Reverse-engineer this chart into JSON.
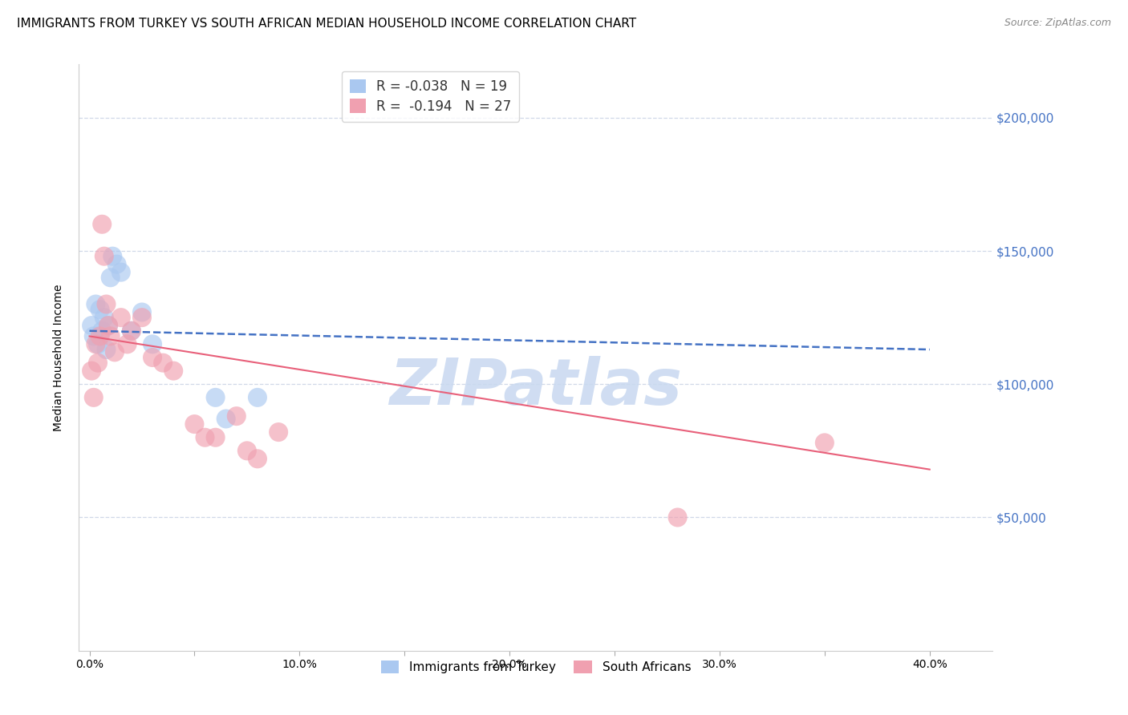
{
  "title": "IMMIGRANTS FROM TURKEY VS SOUTH AFRICAN MEDIAN HOUSEHOLD INCOME CORRELATION CHART",
  "source": "Source: ZipAtlas.com",
  "xlabel_bottom": [
    "0.0%",
    "",
    "10.0%",
    "",
    "20.0%",
    "",
    "30.0%",
    "",
    "40.0%"
  ],
  "xlabel_bottom_vals": [
    0.0,
    0.05,
    0.1,
    0.15,
    0.2,
    0.25,
    0.3,
    0.35,
    0.4
  ],
  "ylabel": "Median Household Income",
  "ytick_labels": [
    "$50,000",
    "$100,000",
    "$150,000",
    "$200,000"
  ],
  "ytick_vals": [
    50000,
    100000,
    150000,
    200000
  ],
  "ylim": [
    0,
    220000
  ],
  "xlim": [
    -0.005,
    0.43
  ],
  "legend_entries": [
    {
      "label_r": "R = ",
      "label_rv": "-0.038",
      "label_n": "   N = 19",
      "color": "#aac8f0"
    },
    {
      "label_r": "R =  ",
      "label_rv": "-0.194",
      "label_n": "   N = 27",
      "color": "#f0a0b0"
    }
  ],
  "legend_labels_bottom": [
    "Immigrants from Turkey",
    "South Africans"
  ],
  "legend_colors_bottom": [
    "#aac8f0",
    "#f0a0b0"
  ],
  "turkey_scatter": {
    "x": [
      0.001,
      0.002,
      0.003,
      0.004,
      0.005,
      0.006,
      0.007,
      0.008,
      0.009,
      0.01,
      0.011,
      0.013,
      0.015,
      0.02,
      0.025,
      0.03,
      0.06,
      0.065,
      0.08
    ],
    "y": [
      122000,
      118000,
      130000,
      115000,
      128000,
      120000,
      125000,
      113000,
      122000,
      140000,
      148000,
      145000,
      142000,
      120000,
      127000,
      115000,
      95000,
      87000,
      95000
    ],
    "color": "#aac8f0",
    "R": -0.038,
    "N": 19
  },
  "sa_scatter": {
    "x": [
      0.001,
      0.002,
      0.003,
      0.004,
      0.005,
      0.006,
      0.007,
      0.008,
      0.009,
      0.01,
      0.012,
      0.015,
      0.018,
      0.02,
      0.025,
      0.03,
      0.035,
      0.04,
      0.05,
      0.055,
      0.06,
      0.07,
      0.075,
      0.08,
      0.09,
      0.28,
      0.35
    ],
    "y": [
      105000,
      95000,
      115000,
      108000,
      118000,
      160000,
      148000,
      130000,
      122000,
      118000,
      112000,
      125000,
      115000,
      120000,
      125000,
      110000,
      108000,
      105000,
      85000,
      80000,
      80000,
      88000,
      75000,
      72000,
      82000,
      50000,
      78000
    ],
    "color": "#f0a0b0",
    "R": -0.194,
    "N": 27
  },
  "turkey_line": {
    "x0": 0.0,
    "x1": 0.4,
    "y0": 120000,
    "y1": 113000,
    "color": "#4472c4",
    "linestyle": "--",
    "linewidth": 1.8
  },
  "sa_line": {
    "x0": 0.0,
    "x1": 0.4,
    "y0": 118000,
    "y1": 68000,
    "color": "#e8607a",
    "linestyle": "-",
    "linewidth": 1.5
  },
  "watermark": "ZIPatlas",
  "watermark_color": "#c8d8f0",
  "grid_color": "#d0d8e8",
  "background_color": "#ffffff",
  "title_fontsize": 11,
  "axis_label_fontsize": 10,
  "tick_label_fontsize": 10,
  "right_tick_color": "#4472c4",
  "bubble_size": 300
}
